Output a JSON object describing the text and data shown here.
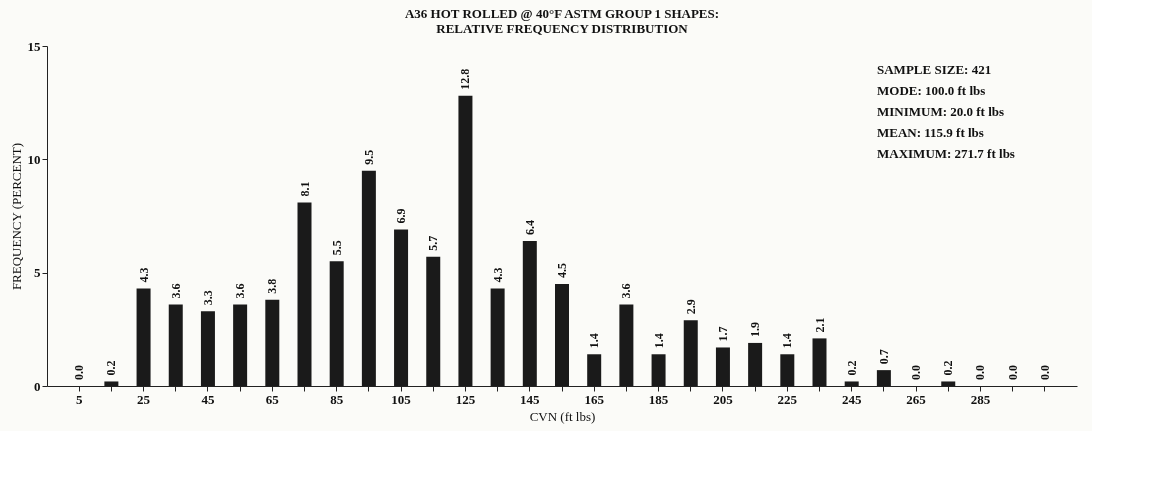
{
  "chart_data": {
    "type": "bar",
    "title": "A36 HOT ROLLED @ 40°F ASTM GROUP 1 SHAPES:\nRELATIVE FREQUENCY DISTRIBUTION",
    "xlabel": "CVN (ft lbs)",
    "ylabel": "FREQUENCY (PERCENT)",
    "categories": [
      "5",
      null,
      "25",
      null,
      "45",
      null,
      "65",
      null,
      "85",
      null,
      "105",
      null,
      "125",
      null,
      "145",
      null,
      "165",
      null,
      "185",
      null,
      "205",
      null,
      "225",
      null,
      "245",
      null,
      "265",
      null,
      "285",
      null,
      null
    ],
    "values": [
      0.0,
      0.2,
      4.3,
      3.6,
      3.3,
      3.6,
      3.8,
      8.1,
      5.5,
      9.5,
      6.9,
      5.7,
      12.8,
      4.3,
      6.4,
      4.5,
      1.4,
      3.6,
      1.4,
      2.9,
      1.7,
      1.9,
      1.4,
      2.1,
      0.2,
      0.7,
      0.0,
      0.2,
      0.0,
      0.0,
      0.0
    ],
    "value_labels": [
      "0.0",
      "0.2",
      "4.3",
      "3.6",
      "3.3",
      "3.6",
      "3.8",
      "8.1",
      "5.5",
      "9.5",
      "6.9",
      "5.7",
      "12.8",
      "4.3",
      "6.4",
      "4.5",
      "1.4",
      "3.6",
      "1.4",
      "2.9",
      "1.7",
      "1.9",
      "1.4",
      "2.1",
      "0.2",
      "0.7",
      "0.0",
      "0.2",
      "0.0",
      "0.0",
      "0.0"
    ],
    "color": "#1a1a1a",
    "ylim": [
      0,
      15
    ],
    "yticks": [
      0,
      5,
      10,
      15
    ],
    "grid": false,
    "annotations": [
      "SAMPLE SIZE: 421",
      "MODE: 100.0 ft lbs",
      "MINIMUM: 20.0 ft lbs",
      "MEAN: 115.9 ft lbs",
      "MAXIMUM: 271.7 ft lbs"
    ]
  }
}
